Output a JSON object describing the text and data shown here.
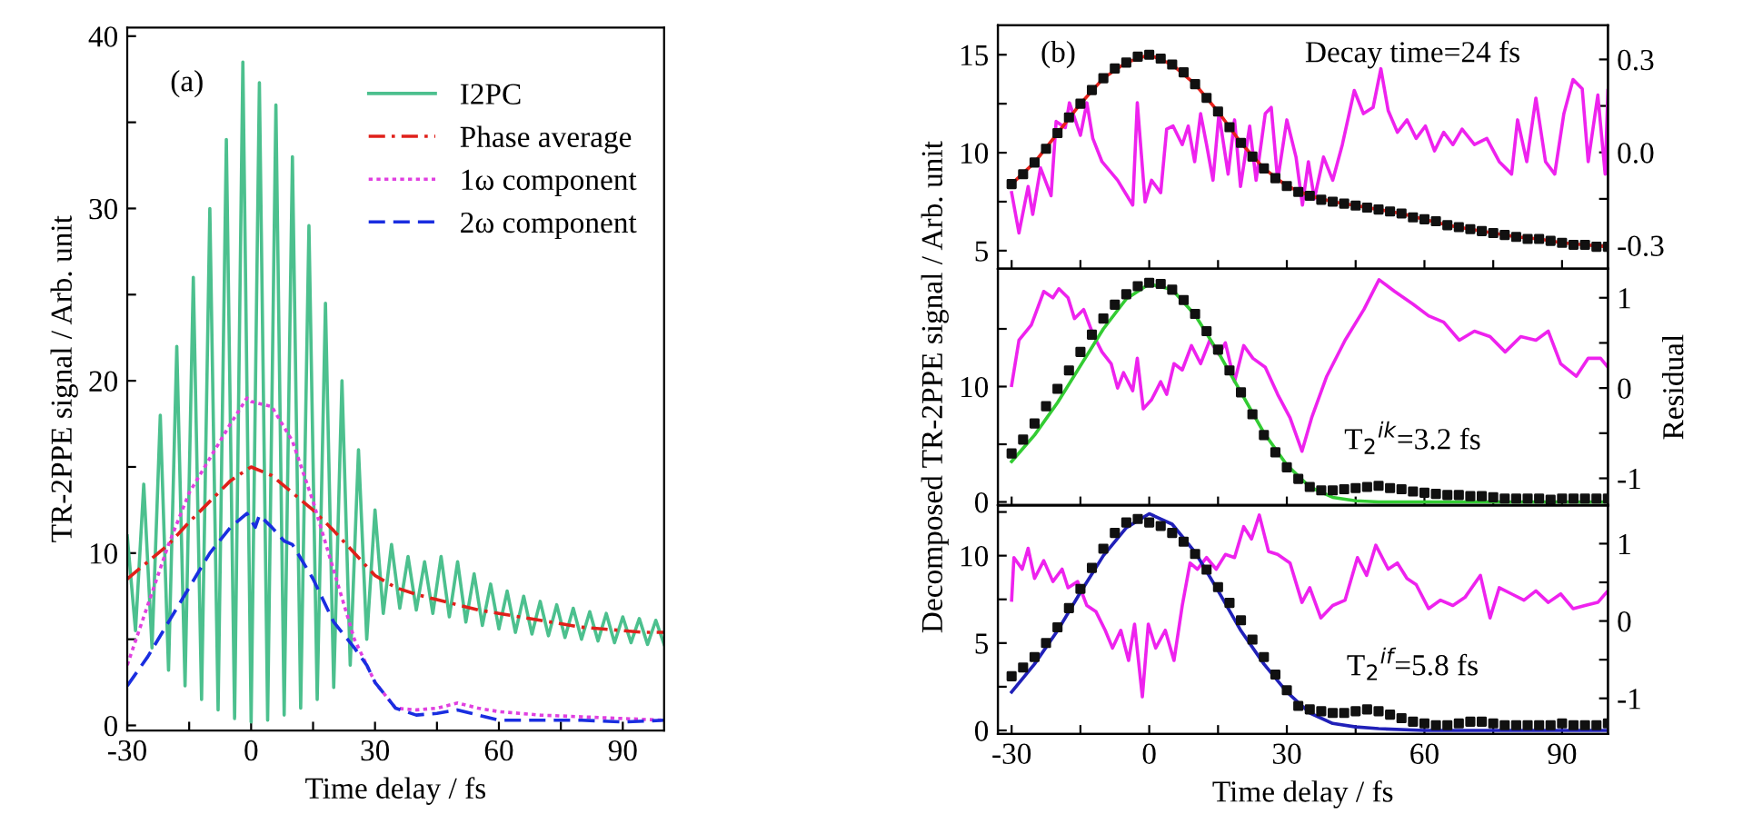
{
  "chart_data": [
    {
      "type": "line",
      "xlabel": "Time delay / fs",
      "ylabel": "TR-2PPE signal / Arb. unit",
      "annotations": [
        "(a)"
      ],
      "xlim": [
        -30,
        100
      ],
      "ylim": [
        -0.3,
        40.5
      ],
      "xticks": [
        -30,
        {
          "value": -15,
          "label": null
        },
        0,
        {
          "value": 15,
          "label": null
        },
        30,
        {
          "value": 45,
          "label": null
        },
        60,
        {
          "value": 75,
          "label": null
        },
        90
      ],
      "yticks": [
        0,
        {
          "value": 5,
          "label": null
        },
        10,
        {
          "value": 15,
          "label": null
        },
        20,
        {
          "value": 25,
          "label": null
        },
        30,
        {
          "value": 35,
          "label": null
        },
        40
      ],
      "legend": "top right",
      "series": [
        {
          "name": "I2PC",
          "color": "#4cc08e",
          "line_style": "solid",
          "x": [
            -30,
            -28,
            -26,
            -24,
            -22,
            -20,
            -18,
            -16,
            -14,
            -12,
            -10,
            -8,
            -6,
            -4,
            -2,
            0,
            2,
            4,
            6,
            8,
            10,
            12,
            14,
            16,
            18,
            20,
            22,
            24,
            26,
            28,
            30,
            32,
            34,
            36,
            38,
            40,
            42,
            44,
            46,
            48,
            50,
            52,
            54,
            56,
            58,
            60,
            62,
            64,
            66,
            68,
            70,
            72,
            74,
            76,
            78,
            80,
            82,
            84,
            86,
            88,
            90,
            92,
            94,
            96,
            98,
            100
          ],
          "values": [
            11,
            5.5,
            14,
            4.5,
            18,
            3.2,
            22,
            2.3,
            26,
            1.5,
            30,
            0.9,
            34,
            0.4,
            38.5,
            0.2,
            37.3,
            0.3,
            36,
            0.6,
            33,
            1,
            29,
            1.5,
            24.5,
            2.2,
            20,
            3.5,
            16,
            5,
            12.5,
            6.5,
            10.5,
            6.8,
            9.8,
            6.7,
            9.5,
            6.5,
            9.8,
            6.3,
            9.5,
            6.0,
            8.8,
            5.8,
            8.2,
            5.6,
            7.8,
            5.4,
            7.5,
            5.3,
            7.2,
            5.2,
            7.0,
            5.1,
            6.8,
            5.0,
            6.6,
            4.9,
            6.5,
            4.8,
            6.3,
            4.8,
            6.2,
            4.7,
            6.1,
            4.7
          ]
        },
        {
          "name": "Phase average",
          "color": "#e0201a",
          "line_style": "dashdot",
          "x": [
            -30,
            -25,
            -20,
            -15,
            -10,
            -5,
            0,
            5,
            10,
            15,
            20,
            25,
            30,
            35,
            40,
            45,
            50,
            55,
            60,
            65,
            70,
            75,
            80,
            85,
            90,
            95,
            100
          ],
          "values": [
            8.5,
            9.5,
            10.5,
            11.8,
            13,
            14.2,
            15,
            14.5,
            13.5,
            12.5,
            11.3,
            10,
            8.7,
            8,
            7.6,
            7.3,
            7,
            6.7,
            6.5,
            6.3,
            6.1,
            5.9,
            5.7,
            5.6,
            5.5,
            5.4,
            5.4
          ]
        },
        {
          "name": "1ω component",
          "color": "#e040e0",
          "line_style": "dotted",
          "x": [
            -30,
            -25,
            -20,
            -15,
            -10,
            -5,
            -1,
            0,
            5,
            10,
            15,
            20,
            25,
            30,
            35,
            40,
            45,
            50,
            55,
            60,
            70,
            80,
            90,
            100
          ],
          "values": [
            3.5,
            7,
            10.5,
            13.5,
            15.5,
            17.5,
            19,
            18.8,
            18.5,
            16.5,
            13,
            9,
            5,
            2.5,
            1,
            0.9,
            1,
            1.3,
            1,
            0.8,
            0.6,
            0.5,
            0.4,
            0.3
          ]
        },
        {
          "name": "2ω component",
          "color": "#1a2ee0",
          "line_style": "dashed",
          "x": [
            -30,
            -25,
            -20,
            -15,
            -10,
            -5,
            -1,
            1,
            2,
            5,
            8,
            10,
            15,
            20,
            25,
            28,
            30,
            35,
            40,
            45,
            50,
            55,
            60,
            70,
            80,
            90,
            100
          ],
          "values": [
            2.3,
            4,
            6,
            8,
            10,
            11.5,
            12.3,
            11.5,
            12.2,
            11.5,
            10.7,
            10.5,
            8.5,
            6,
            4.5,
            3.5,
            2.5,
            1,
            0.6,
            0.7,
            0.9,
            0.6,
            0.3,
            0.3,
            0.3,
            0.2,
            0.3
          ]
        }
      ]
    },
    {
      "type": "line",
      "annotations": [
        "(b)",
        "Decay time=24 fs"
      ],
      "xlim": [
        -33,
        100
      ],
      "ylim": [
        4.07,
        16.5
      ],
      "y2lim": [
        -0.376,
        0.41
      ],
      "tick_labels": "y",
      "xticks": [
        -30,
        {
          "value": -15,
          "label": null
        },
        0,
        {
          "value": 15,
          "label": null
        },
        30,
        {
          "value": 45,
          "label": null
        },
        60,
        {
          "value": 75,
          "label": null
        },
        90
      ],
      "yticks": [
        5,
        {
          "value": 7.5,
          "label": null
        },
        10,
        {
          "value": 12.5,
          "label": null
        },
        15
      ],
      "y2ticks": [
        -0.3,
        {
          "value": -0.15,
          "label": null
        },
        {
          "value": 0,
          "label": "0.0"
        },
        {
          "value": 0.15,
          "label": null
        },
        0.3
      ],
      "series": [
        {
          "type": "scatter",
          "marker": "square",
          "color": "#111111",
          "x": [
            -30,
            -27.5,
            -25,
            -22.5,
            -20,
            -17.5,
            -15,
            -12.5,
            -10,
            -7.5,
            -5,
            -2.5,
            0,
            2.5,
            5,
            7.5,
            10,
            12.5,
            15,
            17.5,
            20,
            22.5,
            25,
            27.5,
            30,
            32.5,
            35,
            37.5,
            40,
            42.5,
            45,
            47.5,
            50,
            52.5,
            55,
            57.5,
            60,
            62.5,
            65,
            67.5,
            70,
            72.5,
            75,
            77.5,
            80,
            82.5,
            85,
            87.5,
            90,
            92.5,
            95,
            97.5,
            100
          ],
          "values": [
            8.4,
            8.9,
            9.5,
            10.2,
            11,
            11.8,
            12.5,
            13.2,
            13.8,
            14.3,
            14.6,
            14.9,
            15.0,
            14.8,
            14.5,
            14.1,
            13.5,
            12.8,
            12.1,
            11.3,
            10.5,
            9.8,
            9.2,
            8.7,
            8.3,
            8.0,
            7.8,
            7.6,
            7.5,
            7.4,
            7.3,
            7.2,
            7.1,
            7.0,
            6.9,
            6.7,
            6.6,
            6.5,
            6.3,
            6.2,
            6.1,
            6.0,
            5.9,
            5.8,
            5.7,
            5.6,
            5.6,
            5.5,
            5.4,
            5.3,
            5.3,
            5.2,
            5.2
          ]
        },
        {
          "type": "line",
          "color": "#e8201a",
          "line_style": "solid",
          "x": [
            -30,
            -25,
            -20,
            -15,
            -10,
            -5,
            0,
            5,
            10,
            15,
            20,
            25,
            30,
            35,
            40,
            45,
            50,
            55,
            60,
            65,
            70,
            75,
            80,
            85,
            90,
            95,
            100
          ],
          "values": [
            8.4,
            9.5,
            11,
            12.5,
            13.8,
            14.6,
            15.0,
            14.5,
            13.5,
            12.1,
            10.5,
            9.2,
            8.3,
            7.8,
            7.5,
            7.3,
            7.1,
            6.9,
            6.6,
            6.3,
            6.1,
            5.9,
            5.7,
            5.6,
            5.4,
            5.3,
            5.2
          ]
        },
        {
          "type": "line",
          "axis": "y2",
          "color": "#ee22ee",
          "line_style": "solid",
          "x": [
            -30,
            -28.4,
            -26.4,
            -25.4,
            -23.7,
            -21.4,
            -20.3,
            -18.3,
            -17.4,
            -15,
            -13.6,
            -12.3,
            -10.3,
            -6.9,
            -3.6,
            -2.6,
            -0.9,
            0.5,
            2.5,
            3.8,
            5.2,
            7.2,
            8.5,
            9.9,
            11.2,
            12.5,
            13.9,
            15.2,
            17.2,
            18.6,
            19.9,
            21.9,
            23.3,
            25.3,
            26.6,
            28,
            30,
            32,
            33.4,
            34.7,
            36,
            38,
            40,
            42.1,
            44.7,
            46.7,
            48.8,
            50.5,
            52.1,
            54.1,
            56.2,
            58.2,
            60.2,
            62.2,
            64.2,
            66.2,
            68.2,
            70.9,
            73.6,
            76.3,
            79,
            80.3,
            82.3,
            84.3,
            86.4,
            88.4,
            90.4,
            92.4,
            94.4,
            95.7,
            97.8,
            99.4,
            100
          ],
          "values": [
            -0.13,
            -0.26,
            -0.11,
            -0.2,
            -0.05,
            -0.14,
            0.1,
            0.08,
            0.16,
            0.055,
            0.16,
            0.045,
            -0.03,
            -0.09,
            -0.17,
            0.16,
            -0.16,
            -0.09,
            -0.13,
            0.075,
            0.085,
            0.025,
            0.085,
            -0.03,
            0.125,
            0.025,
            -0.09,
            0.125,
            -0.07,
            0.105,
            -0.11,
            0.085,
            -0.09,
            0.125,
            0.145,
            -0.09,
            0.105,
            -0.015,
            -0.17,
            -0.03,
            -0.15,
            -0.015,
            -0.09,
            0.025,
            0.2,
            0.125,
            0.145,
            0.27,
            0.135,
            0.065,
            0.105,
            0.045,
            0.085,
            0.005,
            0.065,
            0.025,
            0.075,
            0.025,
            0.045,
            -0.03,
            -0.07,
            0.105,
            -0.03,
            0.175,
            -0.03,
            -0.07,
            0.125,
            0.235,
            0.205,
            -0.03,
            0.185,
            -0.07,
            0.2
          ]
        }
      ]
    },
    {
      "type": "line",
      "ylabel": "Decomposed TR-2PPE signal / Arb. unit",
      "y2label": "Residual",
      "annotations": [
        "T$_{2}$$^{ik}$=3.2 fs"
      ],
      "xlim": [
        -33,
        100
      ],
      "ylim": [
        -0.3,
        20.2
      ],
      "y2lim": [
        -1.3,
        1.32
      ],
      "tick_labels": "y",
      "xticks": [
        -30,
        {
          "value": -15,
          "label": null
        },
        0,
        {
          "value": 15,
          "label": null
        },
        30,
        {
          "value": 45,
          "label": null
        },
        60,
        {
          "value": 75,
          "label": null
        },
        90
      ],
      "yticks": [
        0,
        {
          "value": 5,
          "label": null
        },
        10,
        {
          "value": 15,
          "label": null
        }
      ],
      "y2ticks": [
        -1,
        {
          "value": -0.5,
          "label": null
        },
        0,
        {
          "value": 0.5,
          "label": null
        },
        1
      ],
      "series": [
        {
          "type": "scatter",
          "marker": "square",
          "color": "#111111",
          "x": [
            -30,
            -27.5,
            -25,
            -22.5,
            -20,
            -17.5,
            -15,
            -12.5,
            -10,
            -7.5,
            -5,
            -2.5,
            0,
            2.5,
            5,
            7.5,
            10,
            12.5,
            15,
            17.5,
            20,
            22.5,
            25,
            27.5,
            30,
            32.5,
            35,
            37.5,
            40,
            42.5,
            45,
            47.5,
            50,
            52.5,
            55,
            57.5,
            60,
            62.5,
            65,
            67.5,
            70,
            72.5,
            75,
            77.5,
            80,
            82.5,
            85,
            87.5,
            90,
            92.5,
            95,
            97.5,
            100
          ],
          "values": [
            4.2,
            5.4,
            6.8,
            8.3,
            9.8,
            11.4,
            13,
            14.5,
            15.9,
            17.1,
            18,
            18.7,
            19,
            18.9,
            18.4,
            17.5,
            16.3,
            14.8,
            13.2,
            11.4,
            9.5,
            7.6,
            5.8,
            4.3,
            3,
            2,
            1.3,
            1,
            1,
            1.1,
            1.2,
            1.3,
            1.4,
            1.2,
            1.1,
            0.9,
            0.8,
            0.7,
            0.6,
            0.6,
            0.5,
            0.5,
            0.4,
            0.3,
            0.3,
            0.3,
            0.3,
            0.2,
            0.3,
            0.3,
            0.3,
            0.3,
            0.3
          ]
        },
        {
          "type": "line",
          "color": "#33cc33",
          "line_style": "solid",
          "x": [
            -30,
            -25,
            -20,
            -15,
            -10,
            -5,
            0,
            5,
            10,
            15,
            20,
            25,
            30,
            35,
            40,
            45,
            50,
            60,
            70,
            80,
            90,
            100
          ],
          "values": [
            3.5,
            5.8,
            8.6,
            11.8,
            15,
            17.6,
            18.9,
            18.4,
            16.2,
            13,
            9.5,
            6,
            3.2,
            1.3,
            0.4,
            0.1,
            0,
            0,
            0,
            0,
            0,
            0
          ]
        },
        {
          "type": "line",
          "axis": "y2",
          "color": "#ee22ee",
          "line_style": "solid",
          "x": [
            -30,
            -28.4,
            -25.7,
            -23,
            -21,
            -19.7,
            -17.7,
            -16.3,
            -14.3,
            -12.3,
            -10.3,
            -8.3,
            -6.9,
            -5.6,
            -3.6,
            -2.6,
            -1.3,
            0.5,
            2.5,
            3.8,
            5.4,
            7.2,
            9.2,
            11.2,
            13.2,
            15.2,
            16.6,
            18.6,
            20.6,
            22.6,
            25.3,
            28,
            30.7,
            33.3,
            35.4,
            38.7,
            42.7,
            46.8,
            50.1,
            53.5,
            57.5,
            60.9,
            64.2,
            67.6,
            70.9,
            74.3,
            77.6,
            81,
            84.3,
            87,
            89.7,
            93.1,
            95.7,
            98.4,
            100
          ],
          "values": [
            0.03,
            0.53,
            0.7,
            1.07,
            1.0,
            1.1,
            1.0,
            0.77,
            0.87,
            0.6,
            0.4,
            0.27,
            0,
            0.17,
            -0.03,
            0.33,
            -0.23,
            -0.13,
            0.07,
            -0.07,
            0.27,
            0.2,
            0.47,
            0.27,
            0.53,
            0.37,
            0.5,
            0.07,
            0.47,
            0.33,
            0.23,
            -0.07,
            -0.33,
            -0.7,
            -0.33,
            0.13,
            0.53,
            0.87,
            1.2,
            1.07,
            0.93,
            0.8,
            0.73,
            0.53,
            0.63,
            0.57,
            0.4,
            0.57,
            0.53,
            0.63,
            0.27,
            0.13,
            0.33,
            0.33,
            0.23
          ]
        }
      ]
    },
    {
      "type": "line",
      "xlabel": "Time delay / fs",
      "annotations": [
        "T$_{2}$$^{if}$=5.8 fs"
      ],
      "xlim": [
        -33,
        100
      ],
      "ylim": [
        -0.2,
        12.9
      ],
      "y2lim": [
        -1.46,
        1.5
      ],
      "xticks": [
        -30,
        {
          "value": -15,
          "label": null
        },
        0,
        {
          "value": 15,
          "label": null
        },
        30,
        {
          "value": 45,
          "label": null
        },
        60,
        {
          "value": 75,
          "label": null
        },
        90
      ],
      "yticks": [
        0,
        {
          "value": 2.5,
          "label": null
        },
        5,
        {
          "value": 7.5,
          "label": null
        },
        10,
        {
          "value": 12.5,
          "label": null
        }
      ],
      "y2ticks": [
        -1,
        {
          "value": -0.5,
          "label": null
        },
        0,
        {
          "value": 0.5,
          "label": null
        },
        1
      ],
      "series": [
        {
          "type": "scatter",
          "marker": "square",
          "color": "#111111",
          "x": [
            -30,
            -27.5,
            -25,
            -22.5,
            -20,
            -17.5,
            -15,
            -12.5,
            -10,
            -7.5,
            -5,
            -2.5,
            0,
            2.5,
            5,
            7.5,
            10,
            12.5,
            15,
            17.5,
            20,
            22.5,
            25,
            27.5,
            30,
            32.5,
            35,
            37.5,
            40,
            42.5,
            45,
            47.5,
            50,
            52.5,
            55,
            57.5,
            60,
            62.5,
            65,
            67.5,
            70,
            72.5,
            75,
            77.5,
            80,
            82.5,
            85,
            87.5,
            90,
            92.5,
            95,
            97.5,
            100
          ],
          "values": [
            3.1,
            3.6,
            4.2,
            5,
            5.9,
            7,
            8.1,
            9.3,
            10.4,
            11.3,
            11.9,
            12.1,
            11.9,
            11.7,
            11.3,
            10.8,
            10.1,
            9.2,
            8.2,
            7.3,
            6.3,
            5.2,
            4.2,
            3.2,
            2.3,
            1.4,
            1.2,
            1.1,
            1,
            1.0,
            1.1,
            1.2,
            1.1,
            0.9,
            0.7,
            0.5,
            0.4,
            0.3,
            0.3,
            0.4,
            0.5,
            0.5,
            0.4,
            0.3,
            0.3,
            0.3,
            0.3,
            0.3,
            0.4,
            0.3,
            0.3,
            0.3,
            0.4
          ]
        },
        {
          "type": "line",
          "color": "#2020b8",
          "line_style": "solid",
          "x": [
            -30,
            -25,
            -20,
            -15,
            -10,
            -5,
            0,
            5,
            10,
            15,
            20,
            25,
            30,
            35,
            40,
            45,
            50,
            60,
            70,
            80,
            90,
            100
          ],
          "values": [
            2.2,
            3.8,
            5.7,
            7.9,
            10,
            11.6,
            12.4,
            11.8,
            10.2,
            8,
            5.7,
            3.8,
            2.2,
            1.0,
            0.4,
            0.2,
            0.1,
            0,
            0,
            0,
            0,
            0
          ]
        },
        {
          "type": "line",
          "axis": "y2",
          "color": "#ee22ee",
          "line_style": "solid",
          "x": [
            -30,
            -29.5,
            -27.7,
            -26.4,
            -25,
            -23,
            -21,
            -19,
            -17.7,
            -15.6,
            -13.6,
            -11.6,
            -9.6,
            -8,
            -6.2,
            -4.5,
            -3.2,
            -1.5,
            -0.2,
            1.4,
            3.5,
            5.4,
            7.2,
            8.9,
            10.5,
            12.5,
            14.6,
            16.6,
            18.6,
            20.6,
            22.3,
            24,
            26,
            28,
            30.7,
            33.3,
            35,
            37.4,
            40,
            42.7,
            45.4,
            47.4,
            49.4,
            52.1,
            54.1,
            56.2,
            58.2,
            60.9,
            63.5,
            66.2,
            68.9,
            72.2,
            74.3,
            76.3,
            79,
            81.7,
            84.3,
            87,
            89.7,
            92.4,
            95,
            97.8,
            100
          ],
          "values": [
            0.27,
            0.82,
            0.67,
            0.94,
            0.55,
            0.78,
            0.51,
            0.67,
            0.43,
            0.51,
            0.2,
            0.12,
            -0.12,
            -0.35,
            -0.12,
            -0.51,
            -0.04,
            -0.98,
            -0.04,
            -0.35,
            -0.12,
            -0.51,
            0.2,
            0.75,
            0.67,
            0.82,
            0.67,
            0.86,
            0.82,
            1.22,
            1.06,
            1.37,
            0.9,
            0.86,
            0.75,
            0.24,
            0.43,
            0.04,
            0.2,
            0.27,
            0.82,
            0.59,
            0.98,
            0.67,
            0.75,
            0.55,
            0.47,
            0.16,
            0.27,
            0.2,
            0.31,
            0.59,
            0.04,
            0.43,
            0.35,
            0.27,
            0.39,
            0.24,
            0.35,
            0.16,
            0.2,
            0.24,
            0.39
          ]
        }
      ]
    }
  ]
}
